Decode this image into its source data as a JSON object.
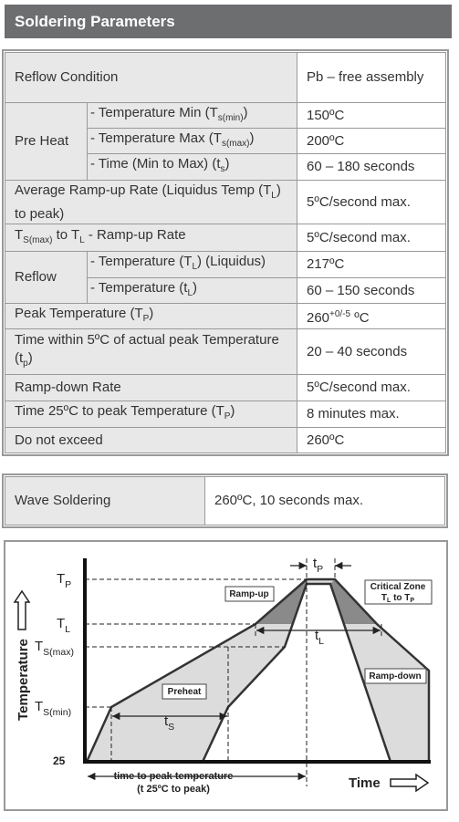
{
  "header": {
    "title": "Soldering Parameters"
  },
  "table": {
    "rows": [
      {
        "label": [
          "Reflow Condition"
        ],
        "value": [
          "Pb – free assembly"
        ]
      },
      {
        "label": [
          "Pre Heat"
        ],
        "items": [
          {
            "label": [
              "- Temperature Min (T",
              {
                "sub": "s(min)"
              },
              ")"
            ],
            "value": [
              "150ºC"
            ]
          },
          {
            "label": [
              "- Temperature Max (T",
              {
                "sub": "s(max)"
              },
              ")"
            ],
            "value": [
              "200ºC"
            ]
          },
          {
            "label": [
              "- Time (Min to Max) (t",
              {
                "sub": "s"
              },
              ")"
            ],
            "value": [
              "60 – 180 seconds"
            ]
          }
        ]
      },
      {
        "label": [
          "Average Ramp-up Rate (Liquidus Temp (T",
          {
            "sub": "L"
          },
          ") to peak)"
        ],
        "value": [
          "5ºC/second max."
        ]
      },
      {
        "label": [
          "T",
          {
            "sub": "S(max)"
          },
          " to T",
          {
            "sub": "L"
          },
          " - Ramp-up Rate"
        ],
        "value": [
          "5ºC/second max."
        ]
      },
      {
        "label": [
          "Reflow"
        ],
        "items": [
          {
            "label": [
              "- Temperature (T",
              {
                "sub": "L"
              },
              ") (Liquidus)"
            ],
            "value": [
              "217ºC"
            ]
          },
          {
            "label": [
              "- Temperature (t",
              {
                "sub": "L"
              },
              ")"
            ],
            "value": [
              "60 – 150 seconds"
            ]
          }
        ]
      },
      {
        "label": [
          "Peak Temperature (T",
          {
            "sub": "P"
          },
          ")"
        ],
        "value": [
          "260",
          {
            "sup": "+0/-5"
          },
          " ºC"
        ]
      },
      {
        "label": [
          "Time within 5ºC of actual peak Temperature (t",
          {
            "sub": "p"
          },
          ")"
        ],
        "value": [
          "20 – 40 seconds"
        ]
      },
      {
        "label": [
          "Ramp-down Rate"
        ],
        "value": [
          "5ºC/second max."
        ]
      },
      {
        "label": [
          "Time 25ºC to peak Temperature (T",
          {
            "sub": "P"
          },
          ")"
        ],
        "value": [
          "8 minutes max."
        ]
      },
      {
        "label": [
          "Do not exceed"
        ],
        "value": [
          "260ºC"
        ]
      }
    ]
  },
  "wave": {
    "label": "Wave Soldering",
    "value": "260ºC, 10 seconds max."
  },
  "diagram": {
    "tp": [
      "T",
      {
        "sub": "P"
      }
    ],
    "tl": [
      "T",
      {
        "sub": "L"
      }
    ],
    "ts_max": [
      "T",
      {
        "sub": "S(max)"
      }
    ],
    "ts_min": [
      "T",
      {
        "sub": "S(min)"
      }
    ],
    "base": [
      "25"
    ],
    "t_p": [
      "t",
      {
        "sub": "P"
      }
    ],
    "t_l": [
      "t",
      {
        "sub": "L"
      }
    ],
    "t_s": [
      "t",
      {
        "sub": "S"
      }
    ],
    "ramp_up": [
      "Ramp-up"
    ],
    "preheat": [
      "Preheat"
    ],
    "critical_zone": [
      "Critical Zone"
    ],
    "critical_range": [
      "T",
      {
        "sub": "L"
      },
      " to T",
      {
        "sub": "P"
      }
    ],
    "ramp_down": [
      "Ramp-down"
    ],
    "axis_y": [
      "Temperature"
    ],
    "axis_x": [
      "Time"
    ],
    "time_to_peak": [
      "time to peak temperature"
    ],
    "time_to_peak_note": [
      "(t 25ºC to peak)"
    ]
  }
}
